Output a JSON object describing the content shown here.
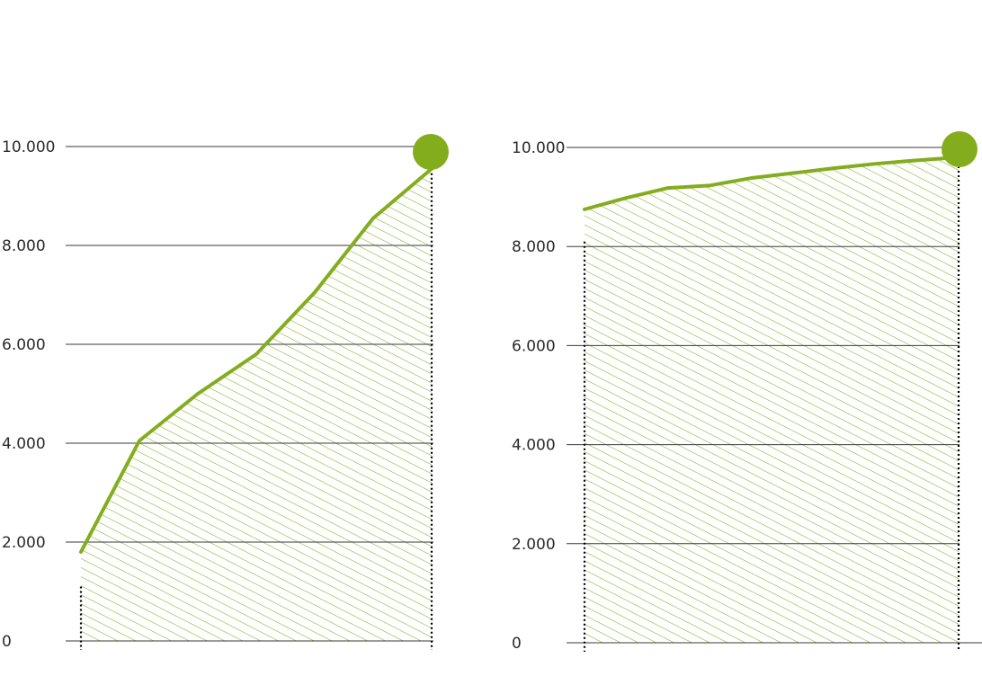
{
  "colors": {
    "accent": "#84ad1e",
    "hatch": "#84ad1e",
    "grid": "#3a3a3a",
    "baseline_right": "#a9b9c9",
    "text": "#2b2b2b"
  },
  "chart_data": [
    {
      "type": "area",
      "hatched_fill": true,
      "y_tick_labels": [
        "0",
        "2.000",
        "4.000",
        "6.000",
        "8.000",
        "10.000"
      ],
      "y_ticks": [
        0,
        2000,
        4000,
        6000,
        8000,
        10000
      ],
      "ylim": [
        0,
        10000
      ],
      "grid": true,
      "x": [
        0,
        1,
        2,
        3,
        4,
        5,
        6
      ],
      "values": [
        1800,
        4050,
        5000,
        5800,
        7050,
        8550,
        9550
      ],
      "end_marker": true,
      "dotted_start_range": [
        0,
        1100
      ],
      "dotted_end_range": [
        0,
        9550
      ]
    },
    {
      "type": "area",
      "hatched_fill": true,
      "y_tick_labels": [
        "0",
        "2.000",
        "4.000",
        "6.000",
        "8.000",
        "10.000"
      ],
      "y_ticks": [
        0,
        2000,
        4000,
        6000,
        8000,
        10000
      ],
      "ylim": [
        0,
        10000
      ],
      "grid": true,
      "x": [
        0,
        1,
        2,
        3,
        4,
        5,
        6,
        7,
        8,
        9
      ],
      "values": [
        8750,
        8980,
        9180,
        9230,
        9380,
        9480,
        9580,
        9670,
        9740,
        9800
      ],
      "end_marker": true,
      "dotted_start_range": [
        0,
        8100
      ],
      "dotted_end_range": [
        0,
        9800
      ]
    }
  ]
}
